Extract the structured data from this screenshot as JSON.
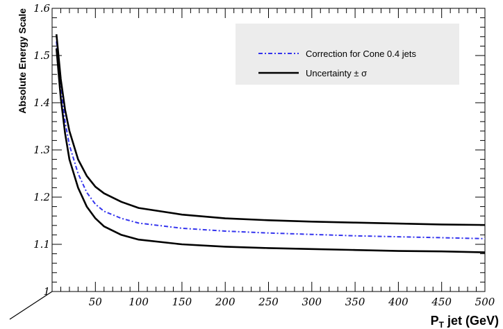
{
  "chart_data": {
    "type": "line",
    "title": "",
    "xlabel": {
      "main": "P",
      "sub": "T",
      "rest": " jet (GeV)"
    },
    "ylabel": "Absolute Energy Scale",
    "xlim": [
      0,
      500
    ],
    "ylim": [
      1.0,
      1.6
    ],
    "x_ticks": [
      50,
      100,
      150,
      200,
      250,
      300,
      350,
      400,
      450,
      500
    ],
    "x_tick_labels": [
      "50",
      "100",
      "150",
      "200",
      "250",
      "300",
      "350",
      "400",
      "450",
      "500"
    ],
    "y_ticks": [
      1.0,
      1.1,
      1.2,
      1.3,
      1.4,
      1.5,
      1.6
    ],
    "y_tick_labels": [
      "1",
      "1.1",
      "1.2",
      "1.3",
      "1.4",
      "1.5",
      "1.6"
    ],
    "grid": false,
    "legend_position": "top-right",
    "series": [
      {
        "name": "Correction for Cone 0.4 jets",
        "color": "#3333ee",
        "style": "dash-dot",
        "x": [
          5,
          10,
          15,
          20,
          30,
          40,
          50,
          60,
          80,
          100,
          150,
          200,
          250,
          300,
          350,
          400,
          450,
          500
        ],
        "y": [
          1.53,
          1.43,
          1.36,
          1.31,
          1.25,
          1.21,
          1.185,
          1.17,
          1.155,
          1.145,
          1.134,
          1.128,
          1.124,
          1.121,
          1.118,
          1.116,
          1.114,
          1.112
        ]
      },
      {
        "name": "Uncertainty ± σ",
        "color": "#000000",
        "style": "solid",
        "x": [
          5,
          10,
          15,
          20,
          30,
          40,
          50,
          60,
          80,
          100,
          150,
          200,
          250,
          300,
          350,
          400,
          450,
          500
        ],
        "y": [
          1.545,
          1.45,
          1.385,
          1.34,
          1.28,
          1.245,
          1.222,
          1.208,
          1.19,
          1.177,
          1.163,
          1.155,
          1.151,
          1.148,
          1.146,
          1.144,
          1.142,
          1.141
        ]
      },
      {
        "name": "",
        "color": "#000000",
        "style": "solid",
        "x": [
          5,
          10,
          15,
          20,
          30,
          40,
          50,
          60,
          80,
          100,
          150,
          200,
          250,
          300,
          350,
          400,
          450,
          500
        ],
        "y": [
          1.515,
          1.41,
          1.335,
          1.28,
          1.22,
          1.18,
          1.155,
          1.138,
          1.12,
          1.11,
          1.1,
          1.095,
          1.092,
          1.09,
          1.088,
          1.086,
          1.085,
          1.083
        ]
      }
    ]
  }
}
